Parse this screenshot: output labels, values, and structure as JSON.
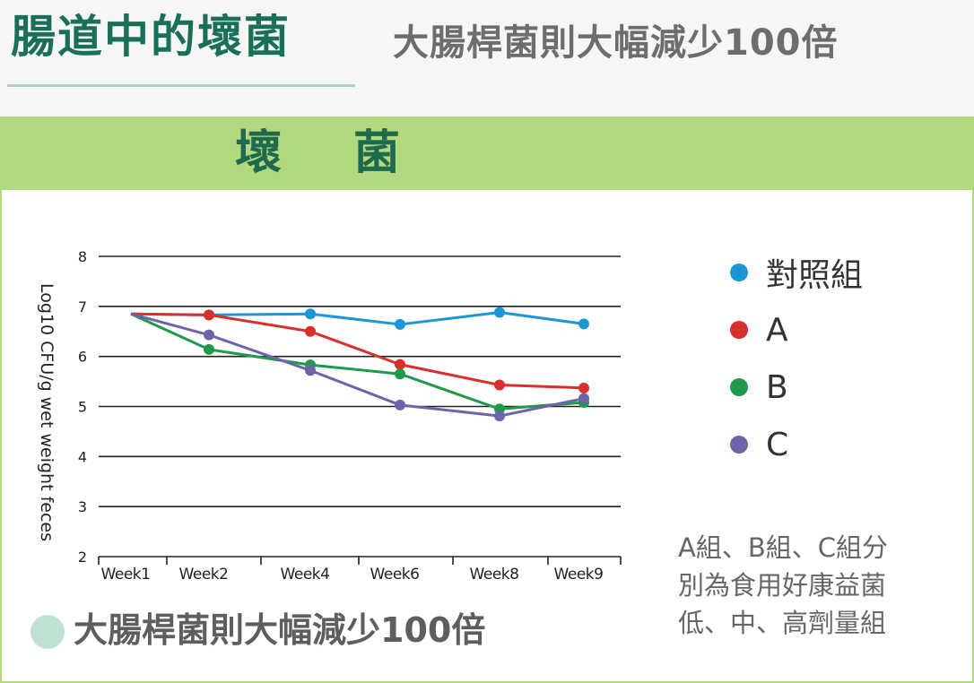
{
  "header": {
    "title": "腸道中的壞菌",
    "subtitle": "大腸桿菌則大幅減少100倍"
  },
  "panel": {
    "title": "壞菌"
  },
  "chart_data": {
    "type": "line",
    "x": [
      "Week1",
      "Week2",
      "Week4",
      "Week6",
      "Week8",
      "Week9"
    ],
    "ylabel": "Log10 CFU/g wet weight feces",
    "ylim": [
      2,
      8
    ],
    "yticks": [
      2,
      3,
      4,
      5,
      6,
      7,
      8
    ],
    "grid": true,
    "legend_position": "right",
    "series": [
      {
        "name": "對照組",
        "color": "#1e96d6",
        "values": [
          6.85,
          6.83,
          6.85,
          6.64,
          6.88,
          6.65
        ]
      },
      {
        "name": "A",
        "color": "#d9302c",
        "values": [
          6.85,
          6.83,
          6.5,
          5.84,
          5.43,
          5.37
        ]
      },
      {
        "name": "B",
        "color": "#1f9a4a",
        "values": [
          6.85,
          6.14,
          5.83,
          5.65,
          4.95,
          5.08
        ]
      },
      {
        "name": "C",
        "color": "#6f64a8",
        "values": [
          6.85,
          6.43,
          5.72,
          5.03,
          4.81,
          5.16
        ]
      }
    ]
  },
  "note": {
    "lines": [
      "A組、B組、C組分",
      "別為食用好康益菌",
      "低、中、高劑量組"
    ]
  },
  "footer": {
    "label": "大腸桿菌則大幅減少100倍"
  }
}
